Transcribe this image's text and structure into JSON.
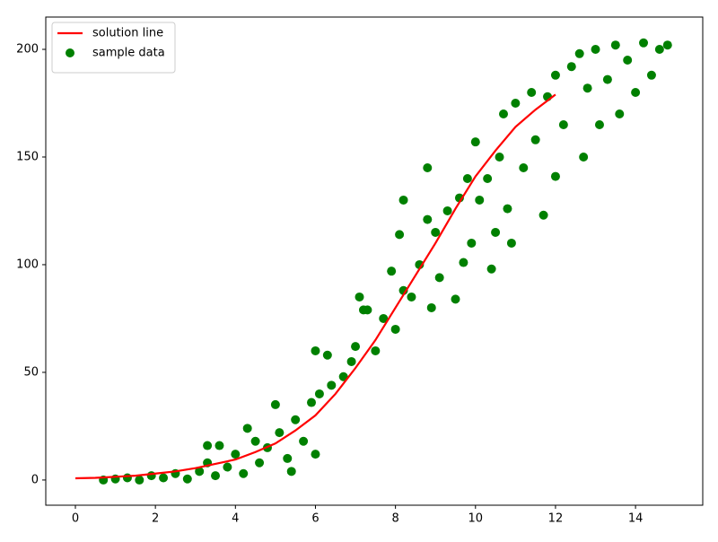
{
  "chart_data": {
    "type": "scatter",
    "xlim": [
      -0.74,
      15.68
    ],
    "ylim": [
      -11.7,
      215
    ],
    "xticks": [
      0,
      2,
      4,
      6,
      8,
      10,
      12,
      14
    ],
    "yticks": [
      0,
      50,
      100,
      150,
      200
    ],
    "legend": "upper left",
    "series": [
      {
        "name": "solution line",
        "type": "line",
        "color": "#ff0000",
        "x": [
          0,
          0.5,
          1,
          1.5,
          2,
          2.5,
          3,
          3.5,
          4,
          4.5,
          5,
          5.5,
          6,
          6.5,
          7,
          7.5,
          8,
          8.5,
          9,
          9.5,
          10,
          10.5,
          11,
          11.5,
          12
        ],
        "values": [
          0.8,
          1,
          1.5,
          2,
          3,
          4,
          5.5,
          7.5,
          9.5,
          13,
          17,
          23,
          30,
          40,
          52,
          65,
          80,
          95,
          110,
          126,
          141,
          153,
          164,
          172,
          179
        ]
      },
      {
        "name": "sample data",
        "type": "scatter",
        "color": "#008000",
        "x": [
          0.7,
          1,
          1.3,
          1.6,
          1.9,
          2.2,
          2.5,
          2.8,
          3.1,
          3.3,
          3.3,
          3.6,
          3.5,
          3.8,
          4.0,
          4.2,
          4.3,
          4.5,
          4.6,
          4.8,
          5.0,
          5.1,
          5.3,
          5.4,
          5.5,
          5.7,
          5.9,
          6.0,
          6.0,
          6.1,
          6.3,
          6.4,
          6.7,
          6.9,
          7.0,
          7.1,
          7.2,
          7.3,
          7.5,
          7.7,
          7.9,
          8.0,
          8.1,
          8.2,
          8.2,
          8.4,
          8.6,
          8.8,
          8.8,
          8.9,
          9.0,
          9.1,
          9.3,
          9.5,
          9.6,
          9.7,
          9.8,
          9.9,
          10.0,
          10.1,
          10.3,
          10.4,
          10.5,
          10.6,
          10.7,
          10.8,
          10.9,
          11.0,
          11.2,
          11.4,
          11.5,
          11.7,
          11.8,
          12.0,
          12.0,
          12.2,
          12.4,
          12.6,
          12.7,
          12.8,
          13.0,
          13.1,
          13.3,
          13.5,
          13.6,
          13.8,
          14.0,
          14.2,
          14.4,
          14.6,
          14.8
        ],
        "values": [
          0,
          0.5,
          1,
          0,
          2,
          1,
          3,
          0.5,
          4,
          8,
          16,
          16,
          2,
          6,
          12,
          3,
          24,
          18,
          8,
          15,
          35,
          22,
          10,
          4,
          28,
          18,
          36,
          60,
          12,
          40,
          58,
          44,
          48,
          55,
          62,
          85,
          79,
          79,
          60,
          75,
          97,
          70,
          114,
          130,
          88,
          85,
          100,
          145,
          121,
          80,
          115,
          94,
          125,
          84,
          131,
          101,
          140,
          110,
          157,
          130,
          140,
          98,
          115,
          150,
          170,
          126,
          110,
          175,
          145,
          180,
          158,
          123,
          178,
          188,
          141,
          165,
          192,
          198,
          150,
          182,
          200,
          165,
          186,
          202,
          170,
          195,
          180,
          203,
          188,
          200,
          202
        ]
      }
    ]
  }
}
